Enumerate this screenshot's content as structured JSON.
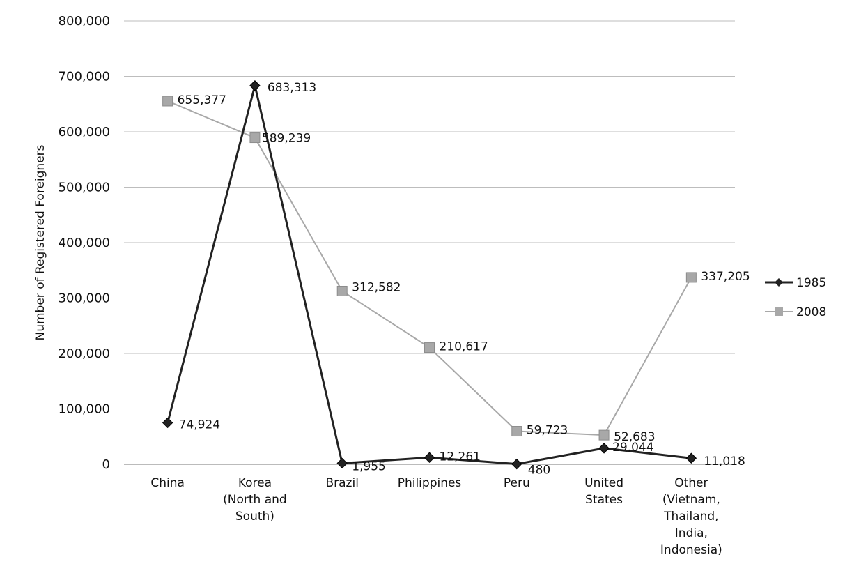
{
  "chart_data": {
    "type": "line",
    "title": "",
    "xlabel": "",
    "ylabel": "Number of Registered Foreigners",
    "ylim": [
      0,
      800000
    ],
    "yticks": [
      "0",
      "100,000",
      "200,000",
      "300,000",
      "400,000",
      "500,000",
      "600,000",
      "700,000",
      "800,000"
    ],
    "grid": true,
    "legend": "right",
    "categories": [
      [
        "China"
      ],
      [
        "Korea",
        "(North and",
        "South)"
      ],
      [
        "Brazil"
      ],
      [
        "Philippines"
      ],
      [
        "Peru"
      ],
      [
        "United",
        "States"
      ],
      [
        "Other",
        "(Vietnam,",
        "Thailand,",
        "India,",
        "Indonesia)"
      ]
    ],
    "series": [
      {
        "name": "1985",
        "color": "#222222",
        "marker": "diamond",
        "values": [
          74924,
          683313,
          1955,
          12261,
          480,
          29044,
          11018
        ],
        "labels": [
          "74,924",
          "683,313",
          "1,955",
          "12,261",
          "480",
          "29,044",
          "11,018"
        ]
      },
      {
        "name": "2008",
        "color": "#a8a8a8",
        "marker": "square",
        "values": [
          655377,
          589239,
          312582,
          210617,
          59723,
          52683,
          337205
        ],
        "labels": [
          "655,377",
          "589,239",
          "312,582",
          "210,617",
          "59,723",
          "52,683",
          "337,205"
        ]
      }
    ]
  }
}
